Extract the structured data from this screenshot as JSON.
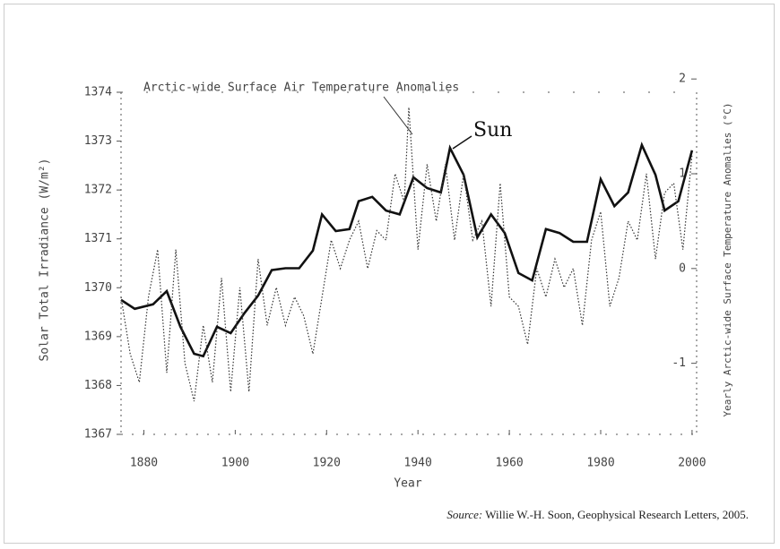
{
  "chart_data": {
    "type": "line",
    "title": "Arctic-wide Surface Air Temperature Anomalies",
    "annotation": "Sun",
    "x_label": "Year",
    "y_label": "Solar Total Irradiance (W/m²)",
    "y2_label": "Yearly Arctic-wide Surface Temperature Anomalies (°C)",
    "xlim": [
      1875,
      2001
    ],
    "xticks": [
      1880,
      1900,
      1920,
      1940,
      1960,
      1980,
      2000
    ],
    "ylim": [
      1367,
      1374
    ],
    "yticks": [
      1367,
      1368,
      1369,
      1370,
      1371,
      1372,
      1373,
      1374
    ],
    "y2lim": [
      -1.75,
      1.86
    ],
    "y2ticks": [
      -1,
      0,
      1,
      2
    ],
    "series": [
      {
        "name": "Sun",
        "color": "#111111",
        "axis": "y",
        "x": [
          1875,
          1878,
          1882,
          1885,
          1888,
          1891,
          1893,
          1896,
          1899,
          1902,
          1905,
          1908,
          1911,
          1914,
          1917,
          1919,
          1922,
          1925,
          1927,
          1930,
          1933,
          1936,
          1939,
          1942,
          1945,
          1947,
          1950,
          1953,
          1956,
          1959,
          1962,
          1965,
          1968,
          1971,
          1974,
          1977,
          1980,
          1983,
          1986,
          1989,
          1992,
          1994,
          1997,
          2000
        ],
        "values": [
          1369.75,
          1369.57,
          1369.66,
          1369.93,
          1369.2,
          1368.65,
          1368.6,
          1369.2,
          1369.07,
          1369.48,
          1369.84,
          1370.36,
          1370.4,
          1370.4,
          1370.76,
          1371.5,
          1371.16,
          1371.2,
          1371.77,
          1371.86,
          1371.58,
          1371.5,
          1372.26,
          1372.04,
          1371.95,
          1372.86,
          1372.31,
          1371.03,
          1371.5,
          1371.12,
          1370.3,
          1370.15,
          1371.2,
          1371.12,
          1370.94,
          1370.94,
          1372.22,
          1371.67,
          1371.95,
          1372.92,
          1372.31,
          1371.58,
          1371.77,
          1372.81
        ]
      },
      {
        "name": "Arctic-wide Surface Air Temperature Anomalies",
        "color": "#333333",
        "axis": "y2",
        "x": [
          1875,
          1877,
          1879,
          1881,
          1883,
          1885,
          1887,
          1889,
          1891,
          1893,
          1895,
          1897,
          1899,
          1901,
          1903,
          1905,
          1907,
          1909,
          1911,
          1913,
          1915,
          1917,
          1919,
          1921,
          1923,
          1925,
          1927,
          1929,
          1931,
          1933,
          1935,
          1937,
          1938,
          1940,
          1942,
          1944,
          1946,
          1948,
          1950,
          1952,
          1954,
          1956,
          1958,
          1960,
          1962,
          1964,
          1966,
          1968,
          1970,
          1972,
          1974,
          1976,
          1978,
          1980,
          1982,
          1984,
          1986,
          1988,
          1990,
          1992,
          1994,
          1996,
          1998,
          2000
        ],
        "values": [
          -0.3,
          -0.9,
          -1.2,
          -0.3,
          0.2,
          -1.1,
          0.2,
          -1.0,
          -1.4,
          -0.6,
          -1.2,
          -0.1,
          -1.3,
          -0.2,
          -1.3,
          0.1,
          -0.6,
          -0.2,
          -0.6,
          -0.3,
          -0.5,
          -0.9,
          -0.3,
          0.3,
          0.0,
          0.3,
          0.5,
          0.0,
          0.4,
          0.3,
          1.0,
          0.7,
          1.7,
          0.2,
          1.1,
          0.5,
          1.1,
          0.3,
          1.0,
          0.3,
          0.5,
          -0.4,
          0.9,
          -0.3,
          -0.4,
          -0.8,
          0.0,
          -0.3,
          0.1,
          -0.2,
          0.0,
          -0.6,
          0.3,
          0.6,
          -0.4,
          -0.1,
          0.5,
          0.3,
          1.0,
          0.1,
          0.8,
          0.9,
          0.2,
          1.2
        ]
      }
    ]
  },
  "source": {
    "label": "Source:",
    "text": "Willie W.-H. Soon, Geophysical Research Letters, 2005."
  }
}
